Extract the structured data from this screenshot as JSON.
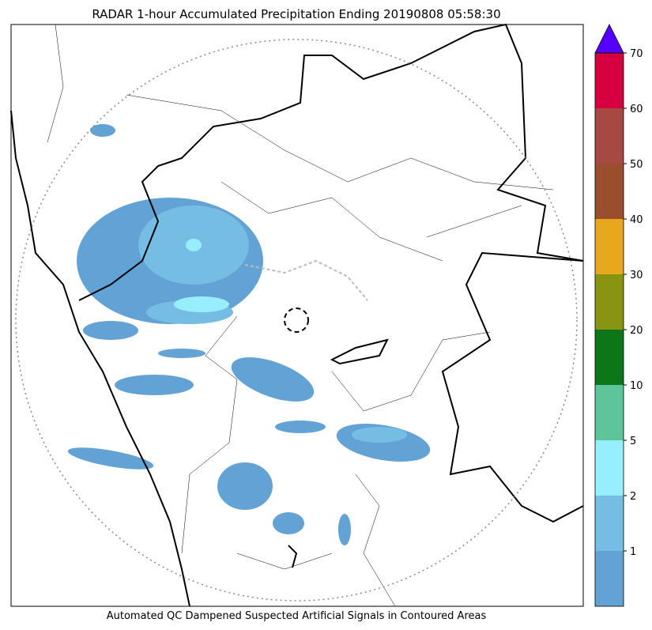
{
  "title": "RADAR 1-hour Accumulated Precipitation Ending 20190808 05:58:30",
  "caption": "Automated QC Dampened Suspected Artificial Signals in Contoured Areas",
  "colorbar": {
    "ticks": [
      1,
      2,
      5,
      10,
      20,
      30,
      40,
      50,
      60,
      70
    ],
    "colors": [
      "#62a2d4",
      "#76bde4",
      "#97eefc",
      "#5ec49a",
      "#0c7619",
      "#8a9413",
      "#e8a81d",
      "#994e2c",
      "#a64943",
      "#d6003e"
    ],
    "extend_color": "#5500ff"
  }
}
